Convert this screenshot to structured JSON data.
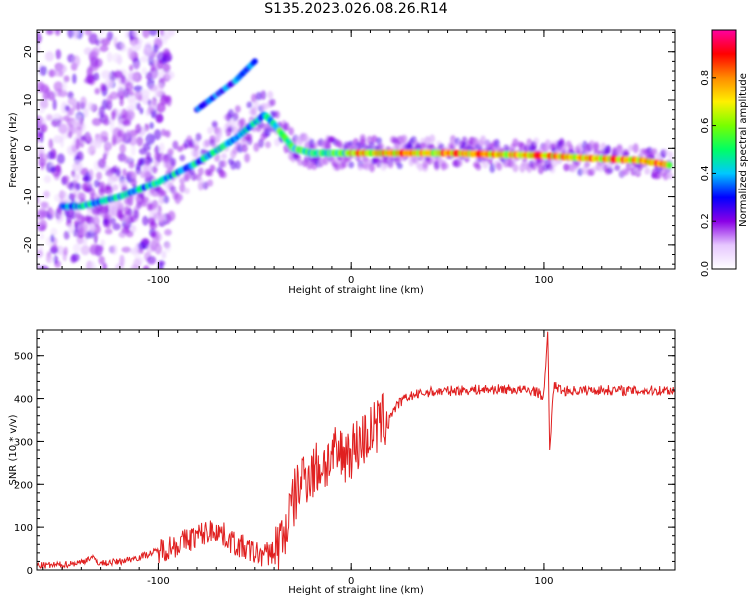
{
  "title": "S135.2023.026.08.26.R14",
  "chart_data": [
    {
      "type": "heatmap",
      "xlabel": "Height of straight line (km)",
      "ylabel": "Frequency (Hz)",
      "xlim": [
        -163,
        168
      ],
      "ylim": [
        -25,
        24.5
      ],
      "xticks": [
        -100,
        0,
        100
      ],
      "yticks": [
        -20,
        -10,
        0,
        10,
        20
      ],
      "ytick_rotation": "vertical",
      "colorbar": {
        "label": "Normalized spectral amplitude",
        "range": [
          0,
          1
        ],
        "ticks": [
          0.0,
          0.2,
          0.4,
          0.6,
          0.8
        ],
        "colormap": [
          "#ffffff",
          "#e6c7ff",
          "#8a00e6",
          "#0000ff",
          "#00c8ff",
          "#00ff64",
          "#78ff00",
          "#fff000",
          "#ff8c00",
          "#ff0000",
          "#ff00a0"
        ]
      },
      "ridge": {
        "description_points_x": [
          -140,
          -120,
          -100,
          -80,
          -60,
          -45,
          -40,
          -30,
          -20,
          0,
          50,
          100,
          120,
          150,
          165
        ],
        "frequency_y": [
          -12,
          -10,
          -7,
          -3,
          2,
          7,
          5,
          0,
          -1,
          -1,
          -1,
          -1.5,
          -2,
          -2.5,
          -3.5
        ]
      },
      "upper_branch": {
        "x": [
          -80,
          -70,
          -60,
          -50
        ],
        "frequency_y": [
          8,
          11,
          14,
          18
        ]
      }
    },
    {
      "type": "line",
      "xlabel": "Height of straight line (km)",
      "ylabel": "SNR (10 * v/v)",
      "xlim": [
        -163,
        168
      ],
      "ylim": [
        0,
        560
      ],
      "xticks": [
        -100,
        0,
        100
      ],
      "yticks": [
        0,
        100,
        200,
        300,
        400,
        500
      ],
      "series": [
        {
          "color": "#e02020",
          "x": [
            -163,
            -150,
            -140,
            -135,
            -130,
            -120,
            -110,
            -100,
            -90,
            -80,
            -70,
            -60,
            -50,
            -45,
            -40,
            -35,
            -30,
            -25,
            -20,
            -10,
            0,
            10,
            15,
            20,
            25,
            30,
            40,
            60,
            80,
            95,
            100,
            102,
            103,
            105,
            110,
            130,
            150,
            168
          ],
          "y": [
            10,
            12,
            18,
            30,
            15,
            20,
            30,
            45,
            60,
            80,
            95,
            60,
            40,
            35,
            45,
            80,
            160,
            220,
            230,
            260,
            280,
            320,
            340,
            360,
            390,
            405,
            415,
            420,
            422,
            418,
            405,
            560,
            280,
            430,
            418,
            420,
            418,
            420
          ]
        }
      ]
    }
  ]
}
